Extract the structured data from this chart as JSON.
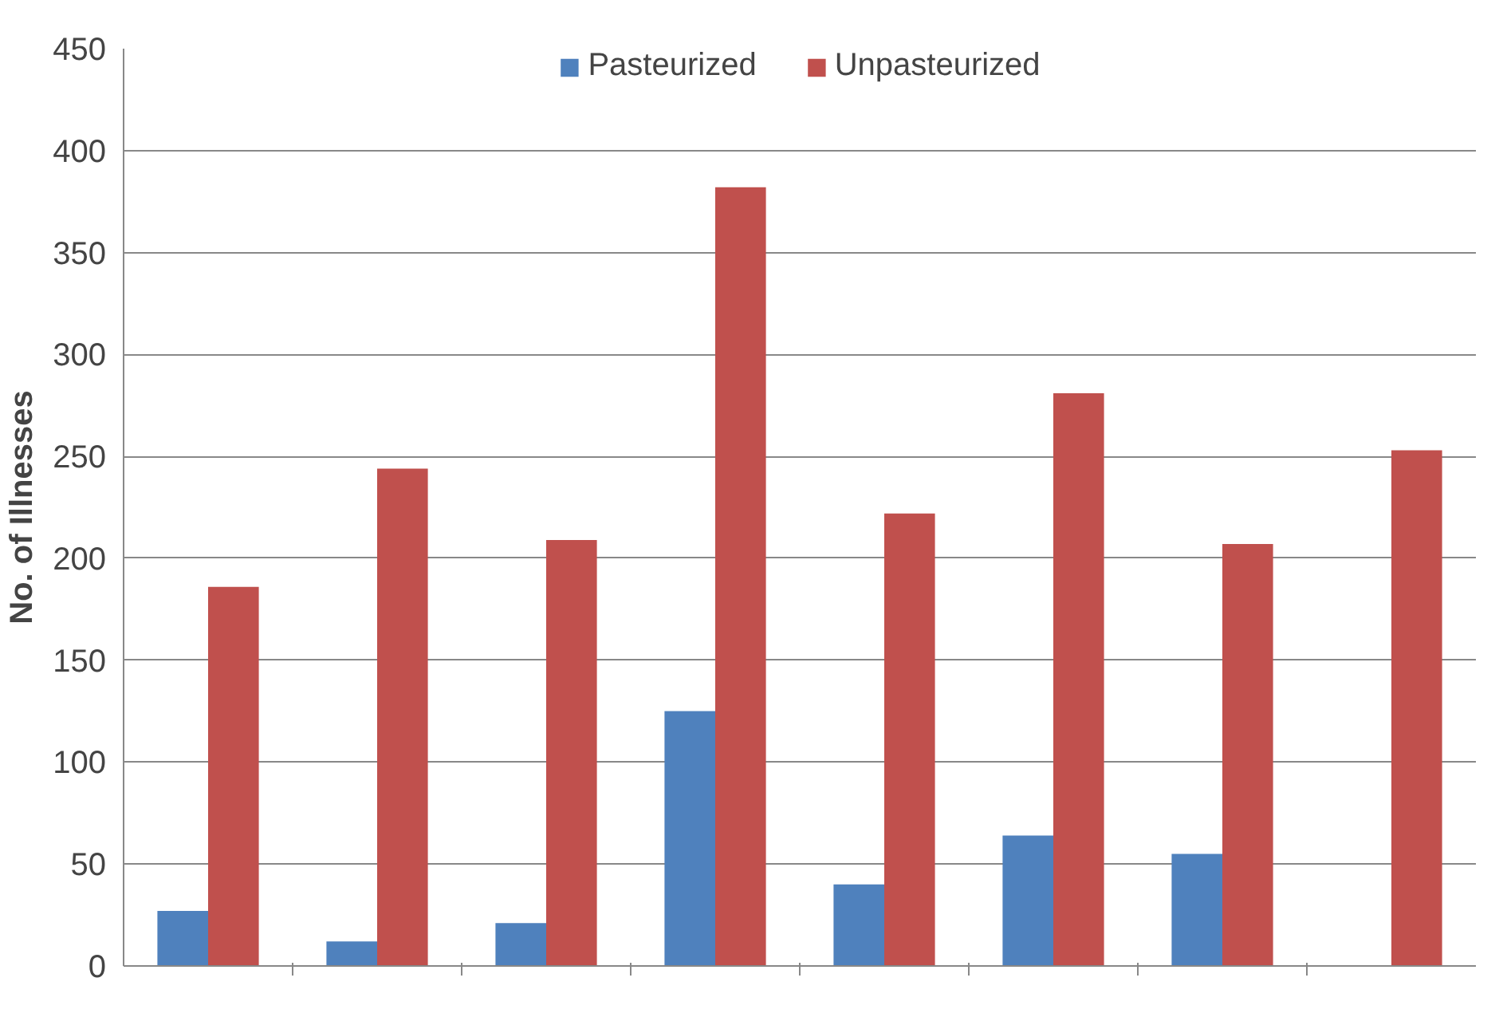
{
  "chart_data": {
    "type": "bar",
    "ylabel": "No. of Illnesses",
    "categories": [
      null,
      null,
      null,
      null,
      null,
      null,
      null,
      null
    ],
    "series": [
      {
        "name": "Pasteurized",
        "color": "#4f81bd",
        "values": [
          27,
          12,
          21,
          125,
          40,
          64,
          55,
          null
        ]
      },
      {
        "name": "Unpasteurized",
        "color": "#c0504d",
        "values": [
          186,
          244,
          209,
          382,
          222,
          281,
          207,
          253
        ]
      }
    ],
    "ylim": [
      0,
      450
    ],
    "yticks": [
      0,
      50,
      100,
      150,
      200,
      250,
      300,
      350,
      400,
      450
    ],
    "grid": "y",
    "legend": "top",
    "tick_labels": "y"
  }
}
